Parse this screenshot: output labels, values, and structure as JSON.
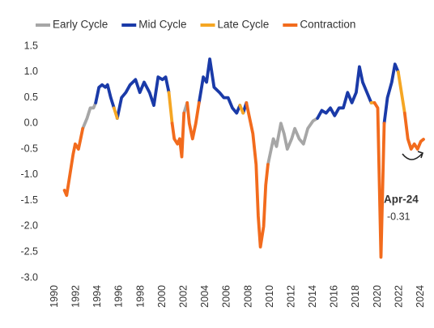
{
  "chart_data": {
    "type": "line",
    "xlim": [
      1989.5,
      2025
    ],
    "xticks": [
      1990,
      1992,
      1994,
      1996,
      1998,
      2000,
      2002,
      2004,
      2006,
      2008,
      2010,
      2012,
      2014,
      2016,
      2018,
      2020,
      2022,
      2024
    ],
    "ylim": [
      -3,
      1.5
    ],
    "yticks": [
      1.5,
      {
        "value": 1,
        "label": "1.0"
      },
      0.5,
      {
        "value": 0,
        "label": "0.0"
      },
      -0.5,
      {
        "value": -1,
        "label": "-1.0"
      },
      -1.5,
      {
        "value": -2,
        "label": "-2.0"
      },
      -2.5,
      {
        "value": -3,
        "label": "-3.0"
      }
    ],
    "grid": false,
    "legend": "top",
    "series": [
      {
        "name": "Early Cycle",
        "color": "#a6a6a6",
        "x": [
          1992.6,
          1992.8,
          1993.0,
          1993.3,
          1993.6,
          1993.8,
          null,
          2002.0,
          2002.3,
          null,
          2009.8,
          2010.1,
          2010.3,
          2010.6,
          2011.0,
          2011.3,
          2011.6,
          2012.0,
          2012.3,
          2012.7,
          2013.1,
          2013.5,
          2014.0,
          2014.4
        ],
        "values": [
          -0.1,
          0.0,
          0.1,
          0.3,
          0.3,
          0.4,
          null,
          0.2,
          0.4,
          null,
          -0.8,
          -0.5,
          -0.3,
          -0.45,
          0.0,
          -0.2,
          -0.5,
          -0.3,
          -0.1,
          -0.3,
          -0.4,
          -0.1,
          0.05,
          0.1
        ]
      },
      {
        "name": "Mid Cycle",
        "color": "#1a3aa8",
        "x": [
          1993.8,
          1994.1,
          1994.4,
          1994.7,
          1994.9,
          1995.2,
          1995.5,
          null,
          1995.8,
          1996.2,
          1996.6,
          1997.0,
          1997.5,
          1997.9,
          1998.3,
          1998.8,
          1999.2,
          1999.6,
          2000.0,
          2000.3,
          2000.6,
          null,
          2003.4,
          2003.8,
          2004.1,
          2004.4,
          2004.8,
          2005.3,
          2005.7,
          2006.1,
          2006.5,
          2006.9,
          2007.2,
          null,
          2007.5,
          2007.8,
          null,
          2014.4,
          2014.8,
          2015.2,
          2015.6,
          2016.0,
          2016.4,
          2016.8,
          2017.2,
          2017.6,
          2018.0,
          2018.3,
          2018.6,
          2019.0,
          2019.4,
          null,
          2020.6,
          2020.9,
          2021.3,
          2021.6,
          2021.9
        ],
        "values": [
          0.4,
          0.7,
          0.75,
          0.7,
          0.75,
          0.5,
          0.3,
          null,
          0.1,
          0.5,
          0.6,
          0.75,
          0.85,
          0.6,
          0.8,
          0.6,
          0.35,
          0.9,
          0.85,
          0.9,
          0.6,
          null,
          0.4,
          0.9,
          0.8,
          1.25,
          0.7,
          0.6,
          0.5,
          0.5,
          0.3,
          0.2,
          0.35,
          null,
          0.2,
          0.4,
          null,
          0.1,
          0.25,
          0.2,
          0.3,
          0.15,
          0.3,
          0.3,
          0.6,
          0.4,
          0.6,
          1.1,
          0.8,
          0.6,
          0.4,
          null,
          0.0,
          0.5,
          0.8,
          1.15,
          1.0
        ]
      },
      {
        "name": "Late Cycle",
        "color": "#f5a623",
        "x": [
          1995.5,
          1995.8,
          null,
          2000.6,
          2000.9,
          null,
          2007.2,
          2007.5,
          null,
          2019.4,
          2019.7,
          null,
          2021.9,
          2022.2,
          2022.5
        ],
        "values": [
          0.3,
          0.1,
          null,
          0.6,
          0.0,
          null,
          0.35,
          0.2,
          null,
          0.4,
          0.4,
          null,
          1.0,
          0.6,
          0.2
        ]
      },
      {
        "name": "Contraction",
        "color": "#f26b1d",
        "x": [
          1990.9,
          1991.1,
          1991.4,
          1991.7,
          1991.9,
          1992.2,
          1992.4,
          1992.6,
          null,
          2000.9,
          2001.1,
          2001.4,
          2001.6,
          2001.8,
          2002.0,
          null,
          2002.3,
          2002.5,
          2002.8,
          2003.1,
          2003.4,
          null,
          2007.8,
          2008.1,
          2008.4,
          2008.7,
          2008.9,
          2009.1,
          2009.4,
          2009.6,
          2009.8,
          null,
          2019.7,
          2020.0,
          2020.3,
          2020.6,
          null,
          2022.5,
          2022.8,
          2023.1,
          2023.4,
          2023.7,
          2024.0,
          2024.25
        ],
        "values": [
          -1.3,
          -1.4,
          -1.0,
          -0.6,
          -0.4,
          -0.5,
          -0.3,
          -0.1,
          null,
          0.0,
          -0.3,
          -0.4,
          -0.3,
          -0.65,
          0.2,
          null,
          0.4,
          0.0,
          -0.3,
          0.0,
          0.4,
          null,
          0.4,
          0.1,
          -0.2,
          -0.8,
          -1.8,
          -2.4,
          -2.0,
          -1.2,
          -0.8,
          null,
          0.4,
          0.3,
          -2.6,
          0.0,
          null,
          0.2,
          -0.3,
          -0.5,
          -0.4,
          -0.5,
          -0.35,
          -0.31
        ]
      }
    ],
    "annotations": [
      "Apr-24",
      "-0.31"
    ]
  }
}
